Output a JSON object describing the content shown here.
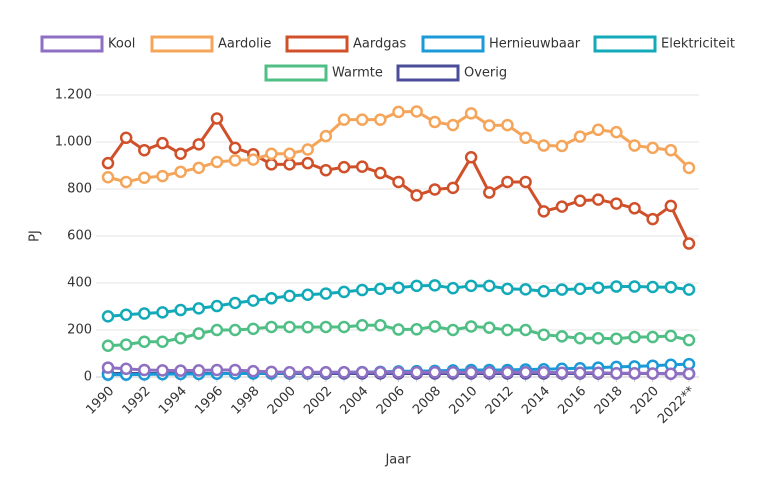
{
  "chart_data": {
    "type": "line",
    "xlabel": "Jaar",
    "ylabel": "PJ",
    "categories": [
      "1990",
      null,
      "1992",
      null,
      "1994",
      null,
      "1996",
      null,
      "1998",
      null,
      "2000",
      null,
      "2002",
      null,
      "2004",
      null,
      "2006",
      null,
      "2008",
      null,
      "2010",
      null,
      "2012",
      null,
      "2014",
      null,
      "2016",
      null,
      "2018",
      null,
      "2020",
      null,
      "2022**"
    ],
    "ylim": [
      0,
      1200
    ],
    "yticks": [
      0,
      200,
      400,
      600,
      800,
      {
        "value": 1000,
        "label": "1.000"
      },
      {
        "value": 1200,
        "label": "1.200"
      }
    ],
    "grid": true,
    "legend": "top",
    "series": [
      {
        "name": "Kool",
        "color": "#8e6fc1",
        "values": [
          40,
          35,
          30,
          28,
          27,
          28,
          30,
          30,
          25,
          22,
          20,
          20,
          20,
          20,
          20,
          20,
          20,
          20,
          20,
          20,
          20,
          20,
          20,
          20,
          20,
          18,
          18,
          18,
          16,
          16,
          15,
          14,
          14
        ]
      },
      {
        "name": "Aardolie",
        "color": "#f5a55a",
        "values": [
          850,
          830,
          848,
          855,
          873,
          890,
          915,
          922,
          925,
          950,
          950,
          968,
          1025,
          1095,
          1095,
          1095,
          1128,
          1130,
          1085,
          1072,
          1122,
          1070,
          1072,
          1018,
          985,
          983,
          1023,
          1052,
          1042,
          985,
          975,
          965,
          890
        ]
      },
      {
        "name": "Aardgas",
        "color": "#d0502a",
        "values": [
          910,
          1018,
          965,
          995,
          950,
          990,
          1100,
          975,
          948,
          905,
          905,
          910,
          880,
          893,
          895,
          868,
          830,
          773,
          798,
          805,
          935,
          785,
          830,
          830,
          705,
          725,
          750,
          755,
          738,
          718,
          672,
          728,
          568
        ]
      },
      {
        "name": "Hernieuwbaar",
        "color": "#1a9ad6",
        "values": [
          10,
          10,
          11,
          12,
          13,
          13,
          14,
          15,
          15,
          16,
          17,
          18,
          19,
          20,
          21,
          22,
          24,
          25,
          26,
          28,
          30,
          30,
          30,
          32,
          33,
          35,
          37,
          40,
          43,
          45,
          48,
          52,
          55
        ]
      },
      {
        "name": "Elektriciteit",
        "color": "#12aab8",
        "values": [
          258,
          265,
          270,
          275,
          285,
          292,
          302,
          315,
          325,
          335,
          345,
          350,
          355,
          362,
          370,
          375,
          380,
          388,
          390,
          378,
          388,
          388,
          375,
          373,
          365,
          372,
          375,
          380,
          385,
          385,
          383,
          382,
          372
        ]
      },
      {
        "name": "Warmte",
        "color": "#4fbf85",
        "values": [
          133,
          138,
          150,
          150,
          165,
          185,
          200,
          200,
          205,
          213,
          213,
          212,
          213,
          213,
          220,
          220,
          202,
          203,
          215,
          200,
          215,
          210,
          200,
          200,
          180,
          173,
          165,
          165,
          163,
          170,
          170,
          175,
          157
        ]
      },
      {
        "name": "Overig",
        "color": "#4b4d9a",
        "values": [
          15,
          15,
          15,
          15,
          15,
          15,
          15,
          15,
          15,
          15,
          15,
          15,
          15,
          15,
          15,
          15,
          15,
          15,
          15,
          15,
          15,
          15,
          15,
          15,
          15,
          15,
          15,
          15,
          15,
          15,
          15,
          14,
          14
        ]
      }
    ]
  }
}
